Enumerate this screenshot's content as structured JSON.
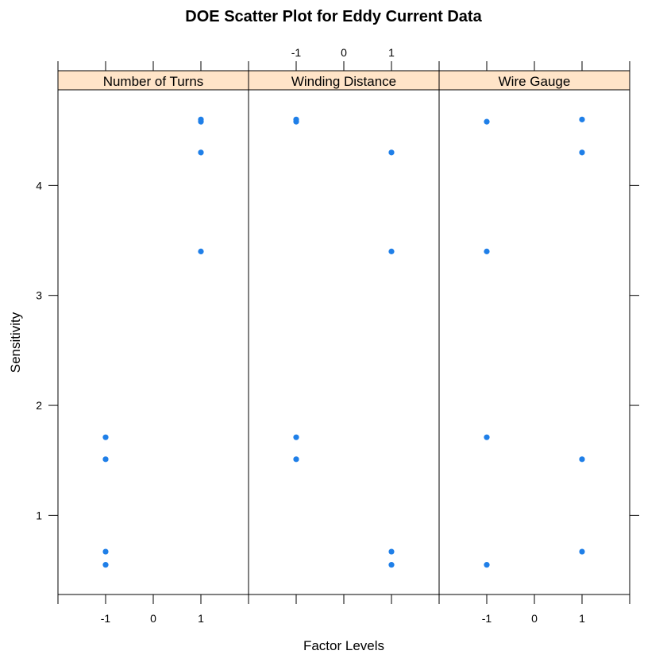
{
  "chart_data": {
    "type": "scatter",
    "title": "DOE Scatter Plot for Eddy Current Data",
    "xlabel": "Factor Levels",
    "ylabel": "Sensitivity",
    "xlim": [
      -2,
      2
    ],
    "ylim": [
      0.28,
      4.87
    ],
    "xticks": [
      "-1",
      "0",
      "1"
    ],
    "yticks": [
      "1",
      "2",
      "3",
      "4"
    ],
    "point_color": "#1f7fe8",
    "strip_color": "#ffe4c8",
    "panels": [
      {
        "name": "Number of Turns",
        "points": [
          {
            "x": 1,
            "y": 4.6
          },
          {
            "x": 1,
            "y": 4.58
          },
          {
            "x": 1,
            "y": 4.3
          },
          {
            "x": 1,
            "y": 3.4
          },
          {
            "x": -1,
            "y": 1.71
          },
          {
            "x": -1,
            "y": 1.51
          },
          {
            "x": -1,
            "y": 0.67
          },
          {
            "x": -1,
            "y": 0.55
          }
        ]
      },
      {
        "name": "Winding Distance",
        "points": [
          {
            "x": -1,
            "y": 4.6
          },
          {
            "x": -1,
            "y": 4.58
          },
          {
            "x": 1,
            "y": 4.3
          },
          {
            "x": 1,
            "y": 3.4
          },
          {
            "x": -1,
            "y": 1.71
          },
          {
            "x": -1,
            "y": 1.51
          },
          {
            "x": 1,
            "y": 0.67
          },
          {
            "x": 1,
            "y": 0.55
          }
        ]
      },
      {
        "name": "Wire Gauge",
        "points": [
          {
            "x": -1,
            "y": 4.58
          },
          {
            "x": 1,
            "y": 4.6
          },
          {
            "x": 1,
            "y": 4.3
          },
          {
            "x": -1,
            "y": 3.4
          },
          {
            "x": -1,
            "y": 1.71
          },
          {
            "x": 1,
            "y": 1.51
          },
          {
            "x": 1,
            "y": 0.67
          },
          {
            "x": -1,
            "y": 0.55
          }
        ]
      }
    ]
  }
}
